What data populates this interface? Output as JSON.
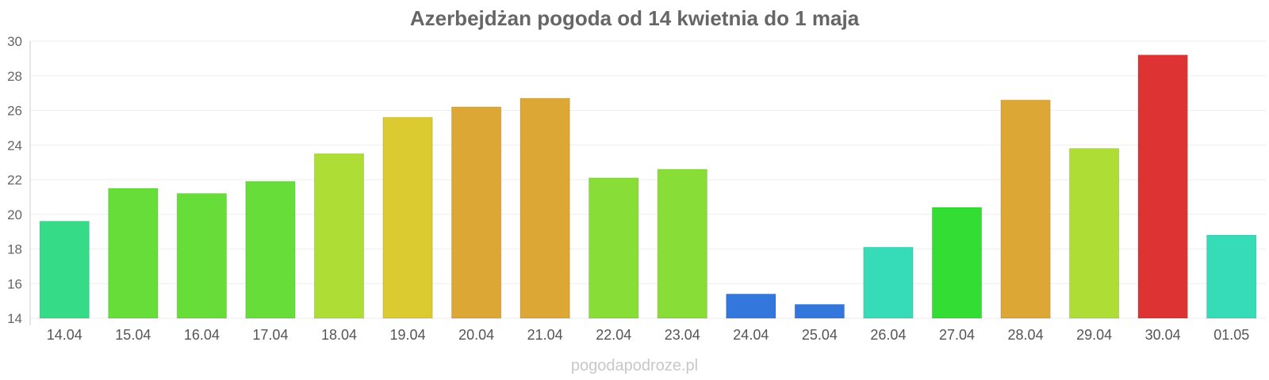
{
  "title": "Azerbejdżan pogoda od 14 kwietnia do 1 maja",
  "watermark": "pogodapodroze.pl",
  "chart_data": {
    "type": "bar",
    "title": "Azerbejdżan pogoda od 14 kwietnia do 1 maja",
    "categories": [
      "14.04",
      "15.04",
      "16.04",
      "17.04",
      "18.04",
      "19.04",
      "20.04",
      "21.04",
      "22.04",
      "23.04",
      "24.04",
      "25.04",
      "26.04",
      "27.04",
      "28.04",
      "29.04",
      "30.04",
      "01.05"
    ],
    "values": [
      19.6,
      21.5,
      21.2,
      21.9,
      23.5,
      25.6,
      26.2,
      26.7,
      22.1,
      22.6,
      15.4,
      14.8,
      18.1,
      20.4,
      26.6,
      23.8,
      29.2,
      18.8
    ],
    "colors": [
      "#36db88",
      "#66dd38",
      "#66dd38",
      "#66dd38",
      "#aedd36",
      "#dbcb31",
      "#dca734",
      "#dca734",
      "#88dd36",
      "#88dd36",
      "#3377dd",
      "#3377dd",
      "#36dbb8",
      "#33dd33",
      "#dca734",
      "#aedd36",
      "#dd3433",
      "#36dbb8"
    ],
    "yticks": [
      14,
      16,
      18,
      20,
      22,
      24,
      26,
      28,
      30
    ],
    "ylim": [
      14,
      30
    ],
    "xlabel": "",
    "ylabel": "",
    "grid": true,
    "legend": "none"
  }
}
